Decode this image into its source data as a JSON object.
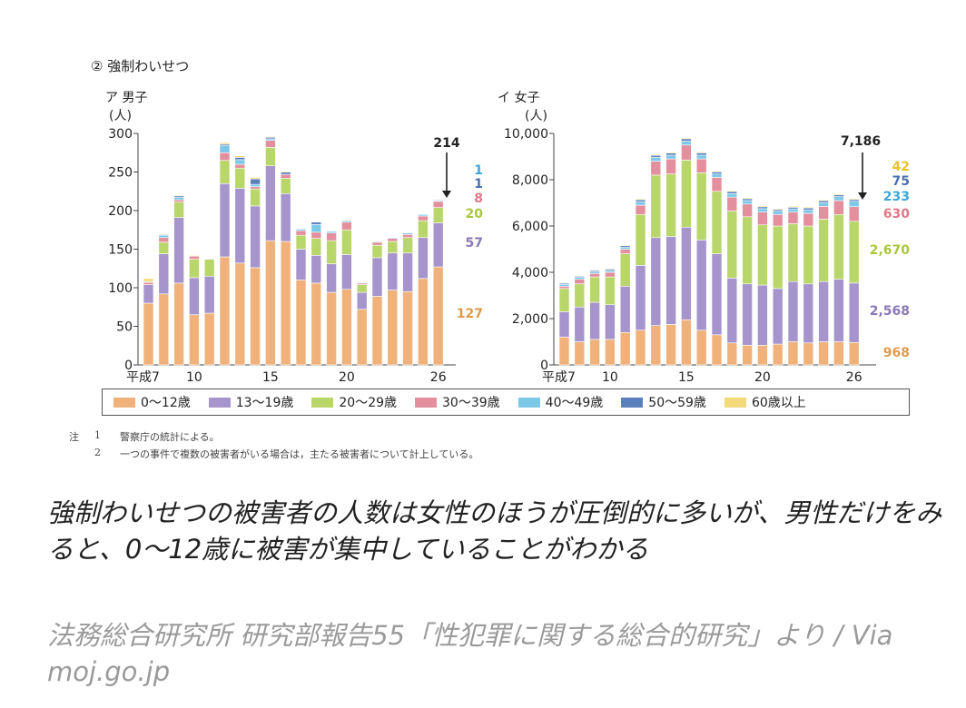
{
  "section_title": "② 強制わいせつ",
  "chart_data": [
    {
      "type": "bar",
      "stacked": true,
      "panel": "ア 男子",
      "unit": "(人)",
      "categories": [
        "平成7",
        "8",
        "9",
        "10",
        "11",
        "12",
        "13",
        "14",
        "15",
        "16",
        "17",
        "18",
        "19",
        "20",
        "21",
        "22",
        "23",
        "24",
        "25",
        "26"
      ],
      "x_tick_labels": [
        "平成7",
        "10",
        "15",
        "20",
        "26"
      ],
      "x_tick_indices": [
        0,
        3,
        8,
        13,
        19
      ],
      "ylim": [
        0,
        300
      ],
      "y_ticks": [
        0,
        50,
        100,
        150,
        200,
        250,
        300
      ],
      "y_tick_labels": [
        "0",
        "50",
        "100",
        "150",
        "200",
        "250",
        "300"
      ],
      "series": [
        {
          "name": "0～12歳",
          "color": "#f0b27a",
          "values": [
            80,
            92,
            106,
            65,
            67,
            140,
            132,
            126,
            161,
            160,
            110,
            106,
            94,
            98,
            72,
            89,
            97,
            95,
            112,
            127
          ]
        },
        {
          "name": "13～19歳",
          "color": "#a695cc",
          "values": [
            24,
            52,
            85,
            48,
            48,
            95,
            97,
            80,
            97,
            62,
            40,
            36,
            37,
            45,
            22,
            50,
            48,
            50,
            53,
            57
          ]
        },
        {
          "name": "20～29歳",
          "color": "#b9d66b",
          "values": [
            0,
            15,
            20,
            24,
            22,
            30,
            26,
            22,
            24,
            20,
            18,
            22,
            30,
            32,
            10,
            16,
            15,
            20,
            22,
            20
          ]
        },
        {
          "name": "30～39歳",
          "color": "#e48f9e",
          "values": [
            3,
            6,
            3,
            4,
            0,
            10,
            5,
            3,
            9,
            5,
            6,
            8,
            10,
            10,
            2,
            4,
            4,
            4,
            6,
            8
          ]
        },
        {
          "name": "40～49歳",
          "color": "#7cc8e8",
          "values": [
            1,
            3,
            3,
            0,
            0,
            9,
            6,
            3,
            2,
            0,
            2,
            10,
            2,
            2,
            1,
            1,
            1,
            2,
            2,
            1
          ]
        },
        {
          "name": "50～59歳",
          "color": "#5b7fbd",
          "values": [
            0,
            1,
            2,
            0,
            0,
            2,
            3,
            7,
            2,
            3,
            0,
            3,
            0,
            0,
            0,
            0,
            0,
            0,
            0,
            1
          ]
        },
        {
          "name": "60歳以上",
          "color": "#f3da7a",
          "values": [
            4,
            1,
            1,
            1,
            0,
            2,
            2,
            2,
            1,
            1,
            0,
            0,
            0,
            1,
            0,
            0,
            0,
            0,
            0,
            0
          ]
        }
      ],
      "total_label": "214",
      "value_labels": [
        "1",
        "1",
        "8",
        "20",
        "57",
        "127"
      ]
    },
    {
      "type": "bar",
      "stacked": true,
      "panel": "イ 女子",
      "unit": "(人)",
      "categories": [
        "平成7",
        "8",
        "9",
        "10",
        "11",
        "12",
        "13",
        "14",
        "15",
        "16",
        "17",
        "18",
        "19",
        "20",
        "21",
        "22",
        "23",
        "24",
        "25",
        "26"
      ],
      "x_tick_labels": [
        "平成7",
        "10",
        "15",
        "20",
        "26"
      ],
      "x_tick_indices": [
        0,
        3,
        8,
        13,
        19
      ],
      "ylim": [
        0,
        10000
      ],
      "y_ticks": [
        0,
        2000,
        4000,
        6000,
        8000,
        10000
      ],
      "y_tick_labels": [
        "0",
        "2,000",
        "4,000",
        "6,000",
        "8,000",
        "10,000"
      ],
      "series": [
        {
          "name": "0～12歳",
          "color": "#f0b27a",
          "values": [
            1200,
            1000,
            1100,
            1100,
            1400,
            1500,
            1700,
            1750,
            1950,
            1500,
            1300,
            950,
            850,
            850,
            900,
            1000,
            950,
            1000,
            1000,
            968
          ]
        },
        {
          "name": "13～19歳",
          "color": "#a695cc",
          "values": [
            1100,
            1500,
            1600,
            1500,
            2000,
            2800,
            3800,
            3800,
            4000,
            3900,
            3500,
            2800,
            2650,
            2600,
            2400,
            2600,
            2550,
            2600,
            2700,
            2568
          ]
        },
        {
          "name": "20～29歳",
          "color": "#b9d66b",
          "values": [
            1000,
            1000,
            1100,
            1200,
            1400,
            2200,
            2700,
            2700,
            2900,
            2900,
            2700,
            2900,
            2900,
            2600,
            2700,
            2500,
            2500,
            2700,
            2800,
            2670
          ]
        },
        {
          "name": "30～39歳",
          "color": "#e48f9e",
          "values": [
            100,
            200,
            150,
            200,
            200,
            400,
            600,
            650,
            650,
            600,
            600,
            600,
            550,
            550,
            500,
            500,
            550,
            550,
            600,
            630
          ]
        },
        {
          "name": "40～49歳",
          "color": "#7cc8e8",
          "values": [
            80,
            80,
            80,
            80,
            90,
            150,
            160,
            160,
            170,
            160,
            150,
            150,
            150,
            150,
            140,
            140,
            150,
            160,
            170,
            233
          ]
        },
        {
          "name": "50～59歳",
          "color": "#5b7fbd",
          "values": [
            50,
            50,
            50,
            60,
            60,
            80,
            90,
            90,
            100,
            100,
            90,
            90,
            80,
            80,
            70,
            70,
            80,
            80,
            80,
            75
          ]
        },
        {
          "name": "60歳以上",
          "color": "#f3da7a",
          "values": [
            30,
            30,
            30,
            30,
            30,
            40,
            40,
            40,
            40,
            40,
            40,
            40,
            40,
            40,
            40,
            40,
            40,
            40,
            40,
            42
          ]
        }
      ],
      "total_label": "7,186",
      "value_labels": [
        "42",
        "75",
        "233",
        "630",
        "2,670",
        "2,568",
        "968"
      ]
    }
  ],
  "legend": [
    {
      "name": "0～12歳",
      "color": "#f0b27a"
    },
    {
      "name": "13～19歳",
      "color": "#a695cc"
    },
    {
      "name": "20～29歳",
      "color": "#b9d66b"
    },
    {
      "name": "30～39歳",
      "color": "#e48f9e"
    },
    {
      "name": "40～49歳",
      "color": "#7cc8e8"
    },
    {
      "name": "50～59歳",
      "color": "#5b7fbd"
    },
    {
      "name": "60歳以上",
      "color": "#f3da7a"
    }
  ],
  "notes": {
    "label": "注",
    "items": [
      {
        "num": "1",
        "text": "警察庁の統計による。"
      },
      {
        "num": "2",
        "text": "一つの事件で複数の被害者がいる場合は，主たる被害者について計上している。"
      }
    ]
  },
  "caption": "強制わいせつの被害者の人数は女性のほうが圧倒的に多いが、男性だけをみると、0〜12歳に被害が集中していることがわかる",
  "source": "法務総合研究所 研究部報告55「性犯罪に関する総合的研究」より / Via moj.go.jp",
  "colors": {
    "label_orange": "#e09a4a",
    "label_purple": "#8a78b8",
    "label_green": "#a8c83a",
    "label_pink": "#e07888",
    "label_blue": "#3aa7d8",
    "label_darkblue": "#4a6fb0",
    "label_yellow": "#e6c22a"
  }
}
